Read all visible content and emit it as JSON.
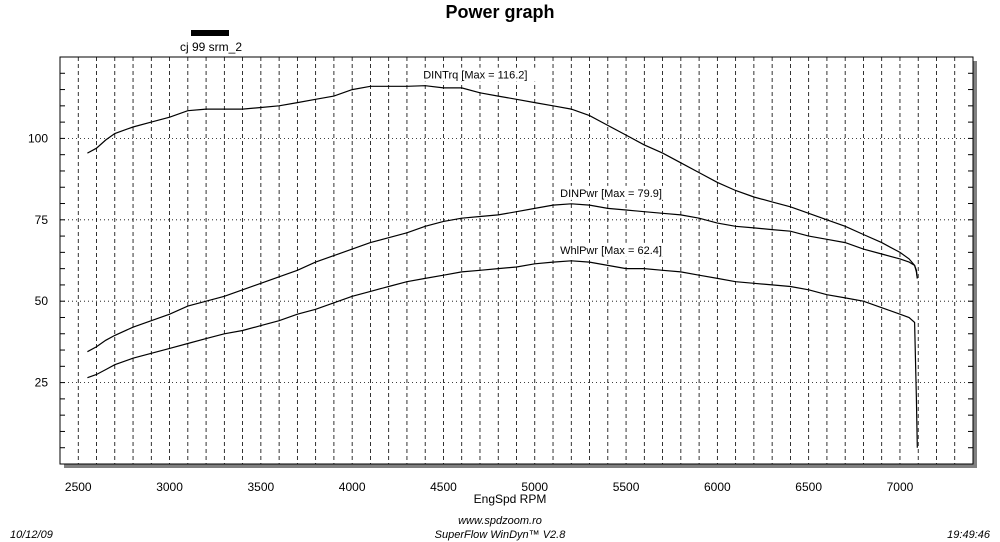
{
  "chart_data": {
    "type": "line",
    "title": "Power graph",
    "xlabel": "EngSpd  RPM",
    "ylabel": "",
    "xlim": [
      2400,
      7400
    ],
    "ylim": [
      0,
      125
    ],
    "xticks": [
      2500,
      3000,
      3500,
      4000,
      4500,
      5000,
      5500,
      6000,
      6500,
      7000
    ],
    "yticks": [
      25,
      50,
      75,
      100
    ],
    "grid": true,
    "legend": {
      "placement": "top-left",
      "entries": [
        {
          "name": "cj 99 srm_2",
          "color": "#000000"
        }
      ]
    },
    "series": [
      {
        "name": "DINTrq",
        "label": "DINTrq [Max = 116.2]",
        "color": "#000000",
        "x": [
          2550,
          2600,
          2650,
          2700,
          2800,
          2900,
          3000,
          3100,
          3200,
          3300,
          3400,
          3500,
          3600,
          3700,
          3800,
          3900,
          4000,
          4100,
          4200,
          4300,
          4400,
          4500,
          4600,
          4700,
          4800,
          4900,
          5000,
          5100,
          5200,
          5300,
          5400,
          5500,
          5600,
          5700,
          5800,
          5900,
          6000,
          6100,
          6200,
          6300,
          6400,
          6500,
          6600,
          6700,
          6800,
          6900,
          7000,
          7050,
          7080,
          7090,
          7095
        ],
        "y": [
          95.5,
          97,
          99.5,
          101.5,
          103.5,
          105,
          106.5,
          108.5,
          109,
          109,
          109,
          109.5,
          110,
          111,
          112,
          113,
          115,
          116,
          116,
          116,
          116.2,
          115.5,
          115.5,
          114,
          113,
          112,
          111,
          110,
          109,
          107,
          104,
          101,
          98,
          95.5,
          92.5,
          89.5,
          86.5,
          84,
          82,
          80.5,
          79,
          77,
          75,
          73,
          70.5,
          68,
          65,
          63,
          61,
          59,
          57
        ]
      },
      {
        "name": "DINPwr",
        "label": "DINPwr [Max = 79.9]",
        "color": "#000000",
        "x": [
          2550,
          2600,
          2650,
          2700,
          2800,
          2900,
          3000,
          3100,
          3200,
          3300,
          3400,
          3500,
          3600,
          3700,
          3800,
          3900,
          4000,
          4100,
          4200,
          4300,
          4400,
          4500,
          4600,
          4700,
          4800,
          4900,
          5000,
          5100,
          5200,
          5300,
          5400,
          5500,
          5600,
          5700,
          5800,
          5900,
          6000,
          6100,
          6200,
          6300,
          6400,
          6500,
          6600,
          6700,
          6800,
          6900,
          7000,
          7050,
          7080,
          7090,
          7095
        ],
        "y": [
          34.5,
          36,
          38,
          39.5,
          42,
          44,
          46,
          48.5,
          50,
          51.5,
          53.5,
          55.5,
          57.5,
          59.5,
          62,
          64,
          66,
          68,
          69.5,
          71,
          73,
          74.5,
          75.5,
          76,
          76.5,
          77.5,
          78.5,
          79.5,
          79.9,
          79.5,
          78.5,
          78,
          77.5,
          77,
          76.5,
          75.5,
          74,
          73,
          72.5,
          72,
          71.5,
          70,
          69,
          68,
          66,
          64.5,
          63,
          62,
          61,
          59.5,
          57
        ]
      },
      {
        "name": "WhlPwr",
        "label": "WhlPwr [Max = 62.4]",
        "color": "#000000",
        "x": [
          2550,
          2600,
          2650,
          2700,
          2800,
          2900,
          3000,
          3100,
          3200,
          3300,
          3400,
          3500,
          3600,
          3700,
          3800,
          3900,
          4000,
          4100,
          4200,
          4300,
          4400,
          4500,
          4600,
          4700,
          4800,
          4900,
          5000,
          5100,
          5200,
          5300,
          5400,
          5500,
          5600,
          5700,
          5800,
          5900,
          6000,
          6100,
          6200,
          6300,
          6400,
          6500,
          6600,
          6700,
          6800,
          6900,
          7000,
          7050,
          7080,
          7090,
          7095
        ],
        "y": [
          26.5,
          27.5,
          29,
          30.5,
          32.5,
          34,
          35.5,
          37,
          38.5,
          40,
          41,
          42.5,
          44,
          46,
          47.5,
          49.5,
          51.5,
          53,
          54.5,
          56,
          57,
          58,
          59,
          59.5,
          60,
          60.5,
          61.5,
          62,
          62.4,
          62,
          61,
          60,
          60,
          59.5,
          59,
          58,
          57,
          56,
          55.5,
          55,
          54.5,
          53.5,
          52,
          51,
          50,
          48,
          46,
          45,
          43.5,
          20,
          5
        ]
      }
    ]
  },
  "legend_label": "cj 99 srm_2",
  "footer": {
    "date": "10/12/09",
    "website": "www.spdzoom.ro",
    "software": "SuperFlow WinDyn™ V2.8",
    "time": "19:49:46"
  }
}
